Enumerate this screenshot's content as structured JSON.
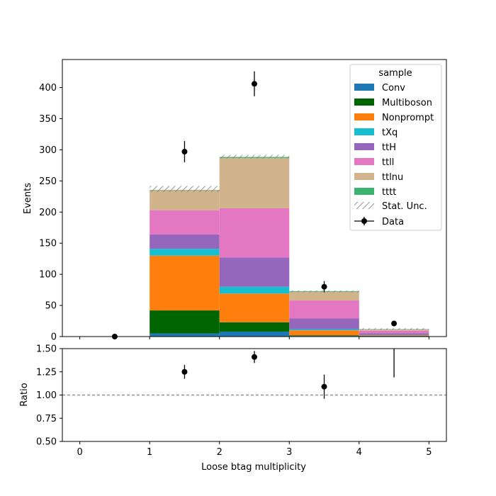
{
  "chart_data": {
    "type": "bar",
    "variant": "stacked-histogram-with-ratio-panel",
    "xlabel": "Loose btag multiplicity",
    "bin_edges": [
      0,
      1,
      2,
      3,
      4,
      5
    ],
    "xticks": [
      "0",
      "1",
      "2",
      "3",
      "4",
      "5"
    ],
    "main_panel": {
      "ylabel": "Events",
      "ylim": [
        0,
        445
      ],
      "yticks": [
        "0",
        "50",
        "100",
        "150",
        "200",
        "250",
        "300",
        "350",
        "400"
      ],
      "series": [
        {
          "name": "Conv",
          "color": "#1f77b4",
          "values": [
            0,
            5,
            8,
            1,
            0.5
          ]
        },
        {
          "name": "Multiboson",
          "color": "#006400",
          "values": [
            0,
            37,
            15,
            1,
            0.5
          ]
        },
        {
          "name": "Nonprompt",
          "color": "#ff7f0e",
          "values": [
            0,
            88,
            46,
            8,
            1
          ]
        },
        {
          "name": "tXq",
          "color": "#17becf",
          "values": [
            0,
            11,
            11,
            2,
            0.5
          ]
        },
        {
          "name": "ttH",
          "color": "#9467bd",
          "values": [
            0,
            23,
            47,
            17,
            3
          ]
        },
        {
          "name": "ttll",
          "color": "#e377c2",
          "values": [
            0,
            39,
            79,
            29,
            4
          ]
        },
        {
          "name": "ttlnu",
          "color": "#d2b48c",
          "values": [
            0,
            32,
            81,
            14,
            2
          ]
        },
        {
          "name": "tttt",
          "color": "#3cb371",
          "values": [
            0,
            0.5,
            1.5,
            1,
            0.5
          ]
        }
      ],
      "stat_unc": {
        "label": "Stat. Unc.",
        "lower": [
          0,
          232,
          286,
          71,
          11
        ],
        "upper": [
          0,
          242,
          292,
          74,
          13.5
        ]
      },
      "data": {
        "name": "Data",
        "x": [
          0.5,
          1.5,
          2.5,
          3.5,
          4.5
        ],
        "y": [
          0,
          297,
          406,
          80,
          21
        ],
        "yerr": [
          0,
          17,
          20,
          9,
          4.5
        ]
      }
    },
    "ratio_panel": {
      "ylabel": "Ratio",
      "ylim": [
        0.5,
        1.5
      ],
      "yticks": [
        "0.50",
        "0.75",
        "1.00",
        "1.25",
        "1.50"
      ],
      "reference_line": 1.0,
      "points": {
        "x": [
          1.5,
          2.5,
          3.5
        ],
        "y": [
          1.25,
          1.41,
          1.09
        ],
        "yerr": [
          0.075,
          0.065,
          0.13
        ]
      },
      "errorbar_only": {
        "x": 4.5,
        "ylow": 1.19
      }
    },
    "legend": {
      "title": "sample",
      "placement": "top-right"
    }
  }
}
